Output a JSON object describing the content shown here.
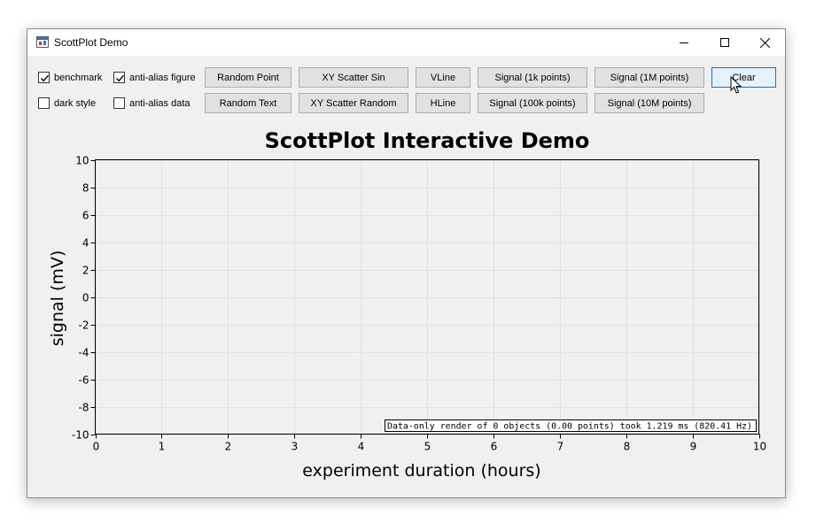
{
  "window": {
    "title": "ScottPlot Demo"
  },
  "checkboxes": [
    {
      "label": "benchmark",
      "checked": true
    },
    {
      "label": "anti-alias figure",
      "checked": true
    },
    {
      "label": "dark style",
      "checked": false
    },
    {
      "label": "anti-alias data",
      "checked": false
    }
  ],
  "buttons": {
    "random_point": "Random Point",
    "random_text": "Random Text",
    "xy_scatter_sin": "XY Scatter Sin",
    "xy_scatter_random": "XY Scatter Random",
    "vline": "VLine",
    "hline": "HLine",
    "signal_1k": "Signal (1k points)",
    "signal_100k": "Signal (100k points)",
    "signal_1m": "Signal (1M points)",
    "signal_10m": "Signal (10M points)",
    "clear": "Clear"
  },
  "chart_data": {
    "type": "line",
    "title": "ScottPlot Interactive Demo",
    "xlabel": "experiment duration (hours)",
    "ylabel": "signal (mV)",
    "xlim": [
      0,
      10
    ],
    "ylim": [
      -10,
      10
    ],
    "xticks": [
      "0",
      "1",
      "2",
      "3",
      "4",
      "5",
      "6",
      "7",
      "8",
      "9",
      "10"
    ],
    "yticks": [
      "10",
      "8",
      "6",
      "4",
      "2",
      "0",
      "-2",
      "-4",
      "-6",
      "-8",
      "-10"
    ],
    "grid": true,
    "series": [],
    "annotation": "Data-only render of 0 objects (0.00 points) took 1.219 ms (820.41 Hz)"
  }
}
